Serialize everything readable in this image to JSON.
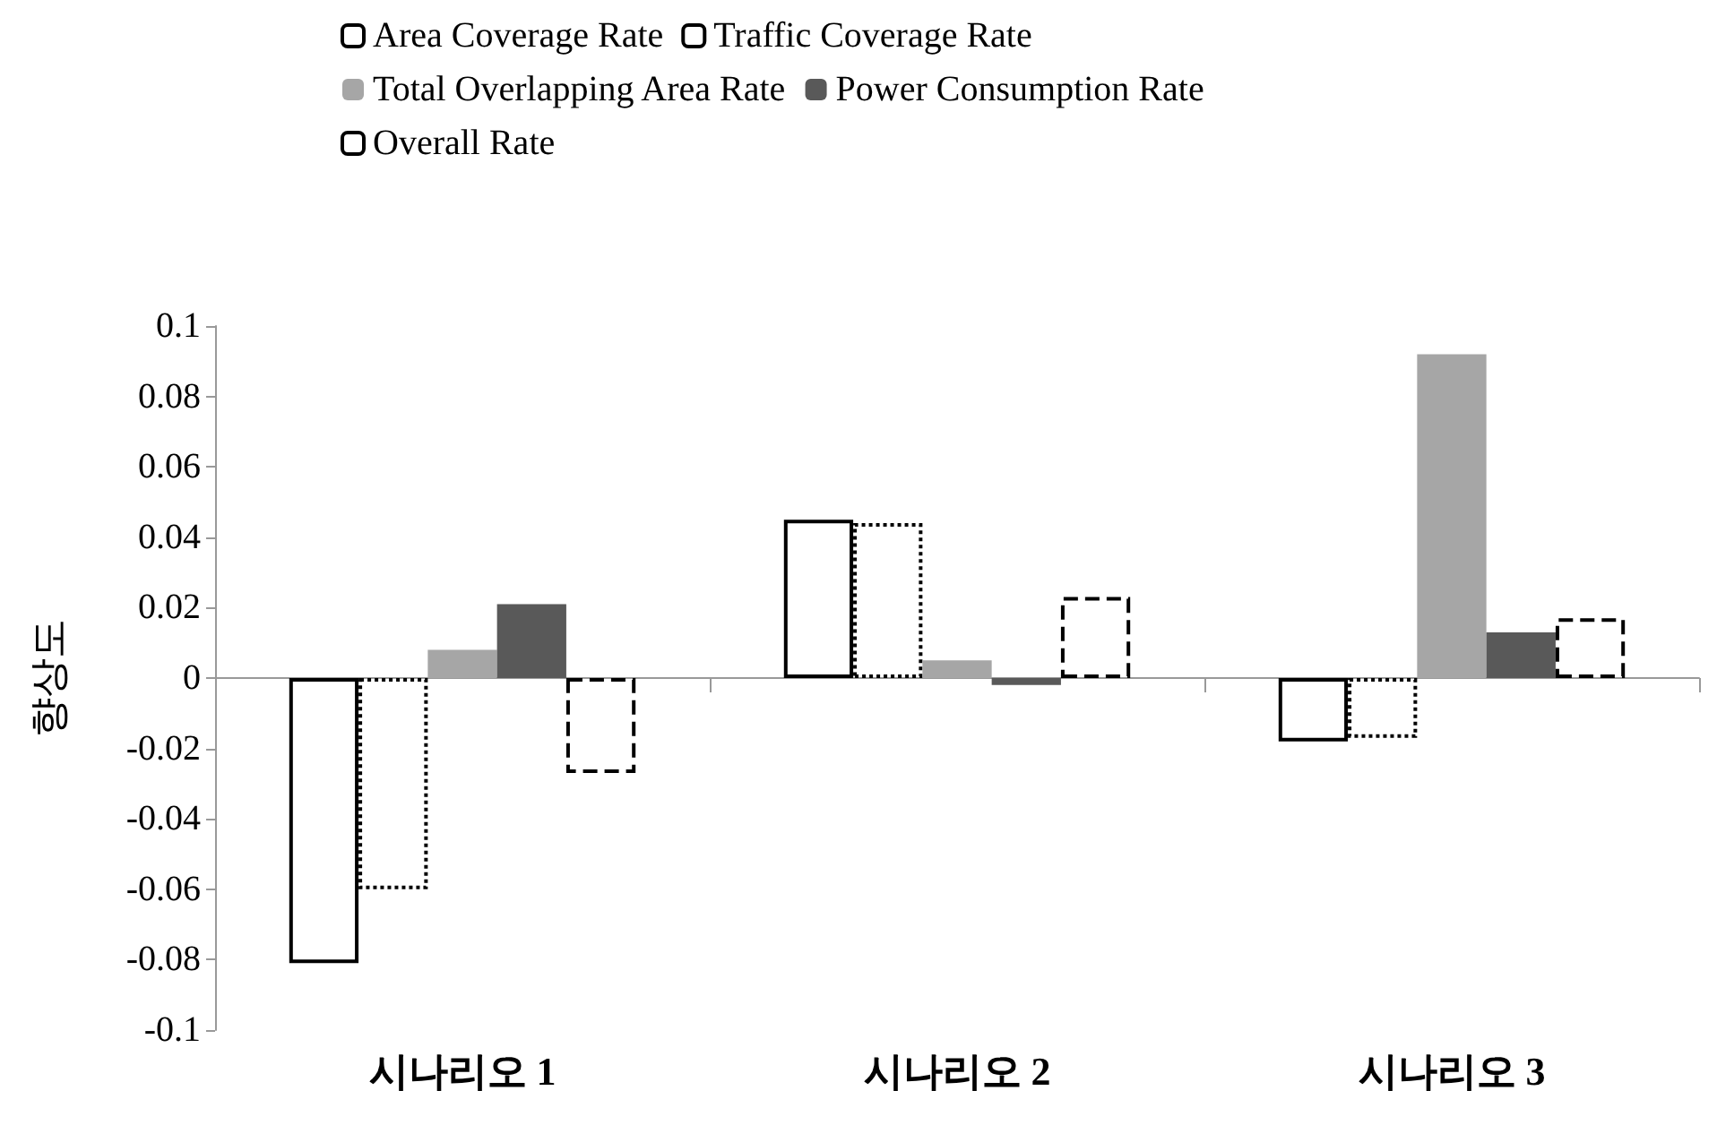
{
  "chart_data": {
    "type": "bar",
    "ylabel": "향상도",
    "categories": [
      "시나리오 1",
      "시나리오 2",
      "시나리오 3"
    ],
    "series": [
      {
        "name": "Area Coverage Rate",
        "color": "#ffffff",
        "line_style": "solid",
        "values": [
          -0.081,
          0.045,
          -0.018
        ]
      },
      {
        "name": "Traffic Coverage Rate",
        "color": "#ffffff",
        "line_style": "dotted",
        "values": [
          -0.06,
          0.044,
          -0.017
        ]
      },
      {
        "name": "Total Overlapping Area Rate",
        "color": "#a6a6a6",
        "values": [
          0.008,
          0.005,
          0.092
        ]
      },
      {
        "name": "Power Consumption Rate",
        "color": "#595959",
        "values": [
          0.021,
          -0.002,
          0.013
        ]
      },
      {
        "name": "Overall Rate",
        "color": "#ffffff",
        "line_style": "dashed",
        "values": [
          -0.027,
          0.023,
          0.017
        ]
      }
    ],
    "ylim": [
      -0.1,
      0.1
    ],
    "yticks": [
      -0.1,
      -0.08,
      -0.06,
      -0.04,
      -0.02,
      0,
      0.02,
      0.04,
      0.06,
      0.08,
      0.1
    ],
    "legend": "top"
  }
}
